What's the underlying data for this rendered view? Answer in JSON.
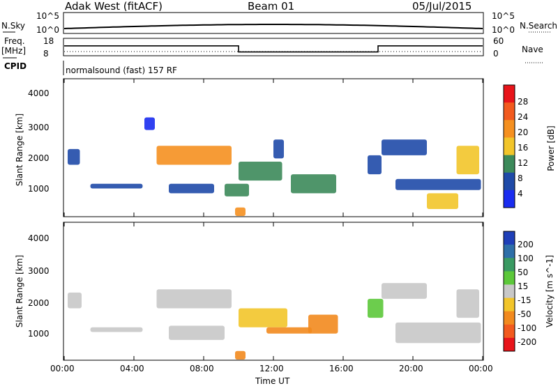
{
  "header": {
    "station": "Adak West (fitACF)",
    "beam": "Beam 01",
    "date": "05/Jul/2015"
  },
  "noise_panel": {
    "left_label": "N.Sky",
    "right_label": "N.Search",
    "left_ticks": [
      "10^5",
      "10^0"
    ],
    "right_ticks": [
      "10^5",
      "10^0"
    ]
  },
  "freq_panel": {
    "left_label_1": "Freq.",
    "left_label_2": "[MHz]",
    "left_ticks": [
      "18",
      "8"
    ],
    "right_label": "Nave",
    "right_ticks": [
      "60",
      "0"
    ],
    "cpid_label": "CPID",
    "cpid_text": "normalsound (fast) 157 RF",
    "freq_trace": [
      {
        "t": 0,
        "v": 14
      },
      {
        "t": 10,
        "v": 14
      },
      {
        "t": 10,
        "v": 10
      },
      {
        "t": 18,
        "v": 10
      },
      {
        "t": 18,
        "v": 14
      },
      {
        "t": 24,
        "v": 14
      }
    ]
  },
  "time_axis": {
    "label": "Time UT",
    "ticks": [
      "00:00",
      "04:00",
      "08:00",
      "12:00",
      "16:00",
      "20:00",
      "00:00"
    ]
  },
  "power_panel": {
    "ylabel": "Slant Range [km]",
    "yticks": [
      "4000",
      "3000",
      "2000",
      "1000"
    ],
    "colorbar_label": "Power [dB]",
    "colorbar_ticks": [
      "28",
      "24",
      "20",
      "16",
      "12",
      "8",
      "4"
    ],
    "colorbar_colors": [
      "#e8141a",
      "#f25a1e",
      "#f59020",
      "#f2c52a",
      "#3c8a5a",
      "#1f4aa8",
      "#1a2cf0"
    ]
  },
  "velocity_panel": {
    "ylabel": "Slant Range [km]",
    "yticks": [
      "4000",
      "3000",
      "2000",
      "1000"
    ],
    "colorbar_label": "Velocity [m s^-1]",
    "colorbar_ticks": [
      "200",
      "100",
      "50",
      "15",
      "-15",
      "-50",
      "-100",
      "-200"
    ],
    "colorbar_colors": [
      "#1f3fb8",
      "#2e6fa8",
      "#3a9a62",
      "#5cc83a",
      "#c8c8c8",
      "#f2c52a",
      "#f28a1e",
      "#f25a1e",
      "#e8141a"
    ]
  },
  "chart_data": {
    "type": "heatmap",
    "x_range_hours": [
      0,
      24
    ],
    "y_range_km": [
      180,
      4500
    ],
    "power_patches": [
      {
        "t0": 0.2,
        "t1": 0.9,
        "r0": 1800,
        "r1": 2300,
        "power": 10
      },
      {
        "t0": 1.5,
        "t1": 4.5,
        "r0": 1050,
        "r1": 1200,
        "power": 8
      },
      {
        "t0": 4.6,
        "t1": 5.2,
        "r0": 2900,
        "r1": 3300,
        "power": 6
      },
      {
        "t0": 5.3,
        "t1": 9.6,
        "r0": 1800,
        "r1": 2400,
        "power": 20
      },
      {
        "t0": 6.0,
        "t1": 8.6,
        "r0": 900,
        "r1": 1200,
        "power": 8
      },
      {
        "t0": 9.2,
        "t1": 10.6,
        "r0": 800,
        "r1": 1200,
        "power": 12
      },
      {
        "t0": 10.0,
        "t1": 12.5,
        "r0": 1300,
        "r1": 1900,
        "power": 14
      },
      {
        "t0": 12.0,
        "t1": 12.6,
        "r0": 2000,
        "r1": 2600,
        "power": 8
      },
      {
        "t0": 9.8,
        "t1": 10.4,
        "r0": 180,
        "r1": 450,
        "power": 22
      },
      {
        "t0": 13.0,
        "t1": 15.6,
        "r0": 900,
        "r1": 1500,
        "power": 14
      },
      {
        "t0": 17.4,
        "t1": 18.2,
        "r0": 1500,
        "r1": 2100,
        "power": 8
      },
      {
        "t0": 18.2,
        "t1": 20.8,
        "r0": 2100,
        "r1": 2600,
        "power": 10
      },
      {
        "t0": 19.0,
        "t1": 23.9,
        "r0": 1000,
        "r1": 1350,
        "power": 8
      },
      {
        "t0": 20.8,
        "t1": 22.6,
        "r0": 400,
        "r1": 900,
        "power": 18
      },
      {
        "t0": 22.5,
        "t1": 23.8,
        "r0": 1500,
        "r1": 2400,
        "power": 18
      }
    ],
    "velocity_patches": [
      {
        "t0": 0.2,
        "t1": 1.0,
        "r0": 1800,
        "r1": 2300,
        "velocity": 0
      },
      {
        "t0": 1.5,
        "t1": 4.5,
        "r0": 1050,
        "r1": 1200,
        "velocity": 0
      },
      {
        "t0": 5.3,
        "t1": 9.6,
        "r0": 1800,
        "r1": 2400,
        "velocity": 0
      },
      {
        "t0": 6.0,
        "t1": 9.2,
        "r0": 800,
        "r1": 1250,
        "velocity": 0
      },
      {
        "t0": 10.0,
        "t1": 12.8,
        "r0": 1200,
        "r1": 1800,
        "velocity": -40
      },
      {
        "t0": 9.8,
        "t1": 10.4,
        "r0": 180,
        "r1": 450,
        "velocity": -90
      },
      {
        "t0": 11.6,
        "t1": 14.2,
        "r0": 1000,
        "r1": 1200,
        "velocity": -90
      },
      {
        "t0": 14.0,
        "t1": 15.7,
        "r0": 1000,
        "r1": 1600,
        "velocity": -90
      },
      {
        "t0": 17.4,
        "t1": 18.3,
        "r0": 1500,
        "r1": 2100,
        "velocity": 30
      },
      {
        "t0": 18.2,
        "t1": 20.8,
        "r0": 2100,
        "r1": 2600,
        "velocity": 0
      },
      {
        "t0": 19.0,
        "t1": 23.9,
        "r0": 700,
        "r1": 1350,
        "velocity": 0
      },
      {
        "t0": 22.5,
        "t1": 23.8,
        "r0": 1500,
        "r1": 2400,
        "velocity": 0
      }
    ]
  }
}
